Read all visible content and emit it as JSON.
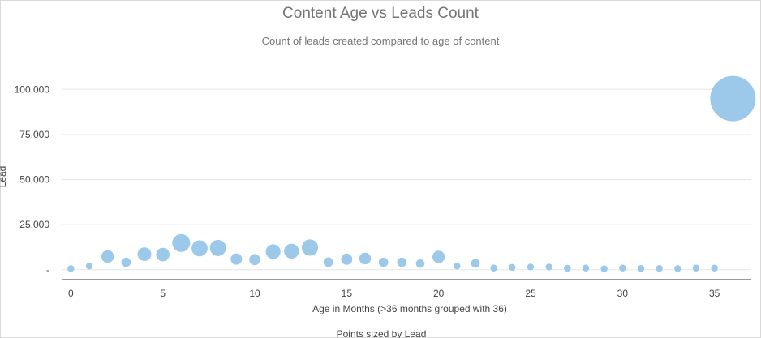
{
  "chart_data": {
    "type": "scatter",
    "title": "Content Age vs Leads Count",
    "subtitle": "Count of leads created compared to age of content",
    "xlabel": "Age in Months (>36 months grouped with 36)",
    "ylabel": "Lead",
    "size_legend": "Points sized by Lead",
    "x_ticks": [
      "0",
      "5",
      "10",
      "15",
      "20",
      "25",
      "30",
      "35"
    ],
    "y_ticks": [
      "-",
      "25,000",
      "50,000",
      "75,000",
      "100,000"
    ],
    "xlim": [
      -0.5,
      37
    ],
    "ylim": [
      -5500,
      110000
    ],
    "grid": true,
    "color": "#9cc9ea",
    "x": [
      0,
      1,
      2,
      3,
      4,
      5,
      6,
      7,
      8,
      9,
      10,
      11,
      12,
      13,
      14,
      15,
      16,
      17,
      18,
      19,
      20,
      21,
      22,
      23,
      24,
      25,
      26,
      27,
      28,
      29,
      30,
      31,
      32,
      33,
      34,
      35,
      36
    ],
    "values": [
      600,
      2000,
      7300,
      4100,
      8600,
      8400,
      14800,
      11900,
      12100,
      5900,
      5600,
      10000,
      10300,
      12300,
      4200,
      5800,
      6200,
      4100,
      4100,
      3400,
      7100,
      2000,
      3500,
      900,
      1300,
      1500,
      1500,
      800,
      900,
      500,
      900,
      700,
      700,
      600,
      900,
      900,
      94900
    ]
  }
}
